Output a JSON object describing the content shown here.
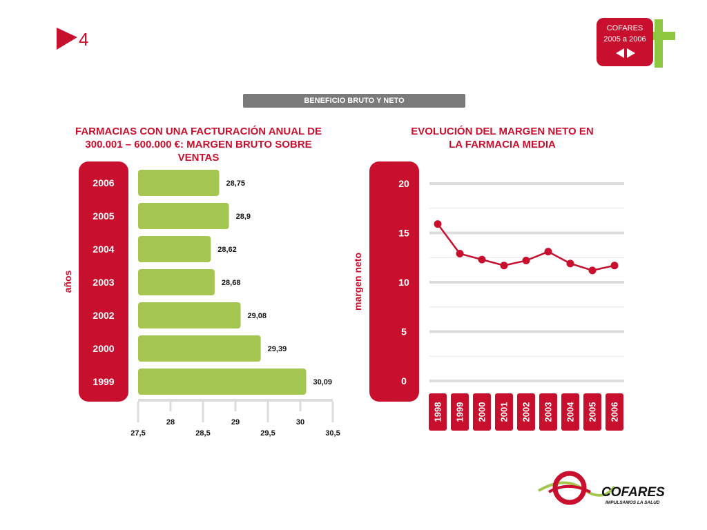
{
  "header": {
    "slide_number": "4",
    "badge_line1": "COFARES",
    "badge_line2": "2005 a 2006"
  },
  "section_title": "BENEFICIO BRUTO Y NETO",
  "colors": {
    "brand_red": "#c8102e",
    "bar_green": "#a5c752",
    "badge_green": "#8dc63f",
    "grid": "#dcdcdc",
    "banner_grey": "#7a7a7a"
  },
  "chart_data": [
    {
      "type": "bar",
      "orientation": "horizontal",
      "title": "FARMACIAS CON UNA FACTURACIÓN ANUAL DE 300.001 – 600.000 €: MARGEN BRUTO SOBRE VENTAS",
      "ylabel": "años",
      "categories": [
        "2006",
        "2005",
        "2004",
        "2003",
        "2002",
        "2000",
        "1999"
      ],
      "values": [
        28.75,
        28.9,
        28.62,
        28.68,
        29.08,
        29.39,
        30.09
      ],
      "value_labels": [
        "28,75",
        "28,9",
        "28,62",
        "28,68",
        "29,08",
        "29,39",
        "30,09"
      ],
      "xlim": [
        27.5,
        30.5
      ],
      "xticks": [
        "27,5",
        "28",
        "28,5",
        "29",
        "29,5",
        "30",
        "30,5"
      ],
      "grid": false
    },
    {
      "type": "line",
      "title": "EVOLUCIÓN DEL MARGEN NETO EN LA FARMACIA MEDIA",
      "ylabel": "margen neto",
      "x": [
        "1998",
        "1999",
        "2000",
        "2001",
        "2002",
        "2003",
        "2004",
        "2005",
        "2006"
      ],
      "values": [
        15.9,
        12.9,
        12.3,
        11.7,
        12.2,
        13.1,
        11.9,
        11.2,
        11.7
      ],
      "ylim": [
        0,
        20
      ],
      "yticks": [
        "0",
        "5",
        "10",
        "15",
        "20"
      ],
      "grid": true
    }
  ],
  "footer": {
    "brand": "COFARES",
    "slogan": "IMPULSAMOS LA SALUD"
  }
}
